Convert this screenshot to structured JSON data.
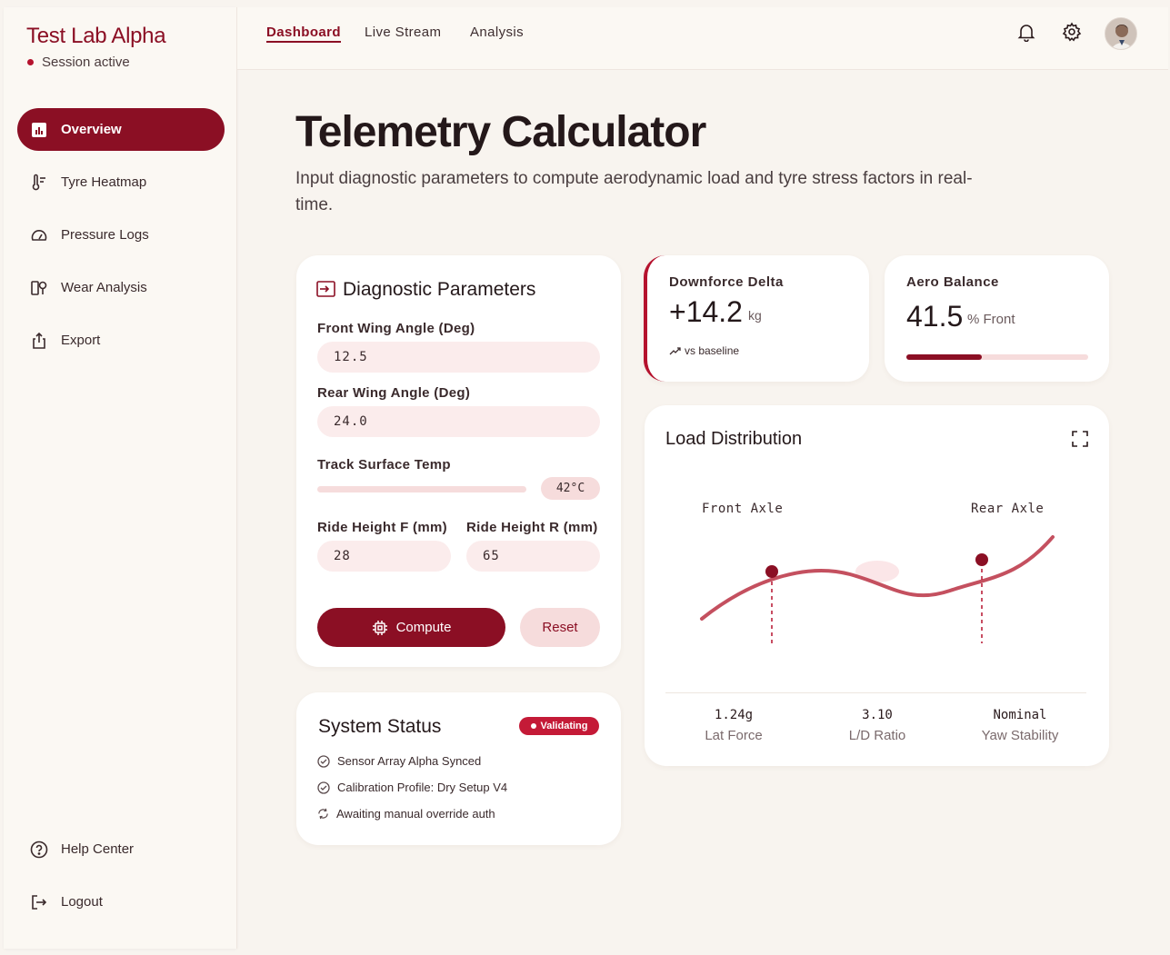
{
  "brand": {
    "name": "Test Lab Alpha",
    "session": "Session active"
  },
  "sidebar": {
    "items": [
      {
        "label": "Overview",
        "icon": "chart-icon",
        "active": true
      },
      {
        "label": "Tyre Heatmap",
        "icon": "thermometer-icon"
      },
      {
        "label": "Pressure Logs",
        "icon": "gauge-icon"
      },
      {
        "label": "Wear Analysis",
        "icon": "wear-icon"
      },
      {
        "label": "Export",
        "icon": "export-icon"
      }
    ],
    "footer": [
      {
        "label": "Help Center",
        "icon": "help-icon"
      },
      {
        "label": "Logout",
        "icon": "logout-icon"
      }
    ]
  },
  "topnav": {
    "tabs": [
      {
        "label": "Dashboard",
        "active": true
      },
      {
        "label": "Live Stream"
      },
      {
        "label": "Analysis"
      }
    ]
  },
  "page": {
    "title": "Telemetry Calculator",
    "subtitle": "Input diagnostic parameters to compute aerodynamic load and tyre stress factors in real-time."
  },
  "params": {
    "title": "Diagnostic Parameters",
    "front_wing_label": "Front Wing Angle (Deg)",
    "front_wing_value": "12.5",
    "rear_wing_label": "Rear Wing Angle (Deg)",
    "rear_wing_value": "24.0",
    "track_temp_label": "Track Surface Temp",
    "track_temp_value": "42°C",
    "ride_f_label": "Ride Height F (mm)",
    "ride_f_value": "28",
    "ride_r_label": "Ride Height R (mm)",
    "ride_r_value": "65",
    "compute_label": "Compute",
    "reset_label": "Reset"
  },
  "status": {
    "title": "System Status",
    "badge": "Validating",
    "lines": [
      "Sensor Array Alpha Synced",
      "Calibration Profile: Dry Setup V4",
      "Awaiting manual override auth"
    ]
  },
  "downforce": {
    "label": "Downforce Delta",
    "value": "+14.2",
    "unit": "kg",
    "note": "vs baseline"
  },
  "aero": {
    "label": "Aero Balance",
    "value": "41.5",
    "unit": "% Front",
    "fraction": 0.415
  },
  "load": {
    "title": "Load Distribution",
    "front_label": "Front Axle",
    "rear_label": "Rear Axle",
    "stats": [
      {
        "value": "1.24g",
        "label": "Lat Force"
      },
      {
        "value": "3.10",
        "label": "L/D Ratio"
      },
      {
        "value": "Nominal",
        "label": "Yaw Stability"
      }
    ]
  },
  "colors": {
    "accent": "#8b0f24",
    "accent_light": "#f6dcdc",
    "curve": "#c4505f"
  }
}
